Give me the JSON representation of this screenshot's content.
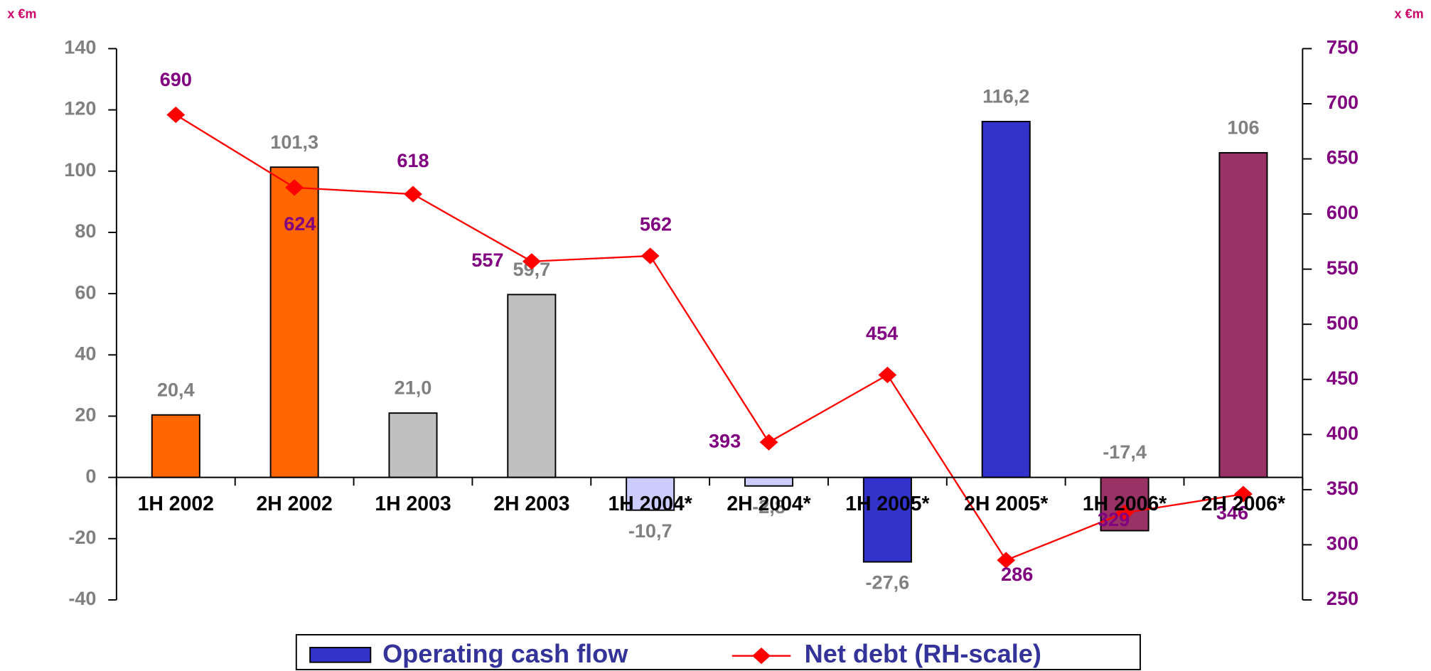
{
  "chart_data": {
    "type": "bar-line",
    "y_unit_label": "x €m",
    "y2_unit_label": "x €m",
    "categories": [
      "1H 2002",
      "2H 2002",
      "1H 2003",
      "2H 2003",
      "1H 2004*",
      "2H 2004*",
      "1H 2005*",
      "2H 2005*",
      "1H 2006*",
      "2H 2006*"
    ],
    "series": [
      {
        "name": "Operating cash flow",
        "type": "bar",
        "color": "#3333cc",
        "colors": [
          "#ff6600",
          "#ff6600",
          "#c0c0c0",
          "#c0c0c0",
          "#ccccff",
          "#ccccff",
          "#3333cc",
          "#3333cc",
          "#993366",
          "#993366"
        ],
        "values": [
          20.4,
          101.3,
          21.0,
          59.7,
          -10.7,
          -2.8,
          -27.6,
          116.2,
          -17.4,
          106
        ],
        "value_labels": [
          "20,4",
          "101,3",
          "21,0",
          "59,7",
          "-10,7",
          "-2,8",
          "-27,6",
          "116,2",
          "-17,4",
          "106"
        ]
      },
      {
        "name": "Net debt (RH-scale)",
        "type": "line",
        "axis": "y2",
        "color": "#ff0000",
        "values": [
          690,
          624,
          618,
          557,
          562,
          393,
          454,
          286,
          329,
          346
        ]
      }
    ],
    "ylim": [
      -40,
      140
    ],
    "yticks": [
      -40,
      -20,
      0,
      20,
      40,
      60,
      80,
      100,
      120,
      140
    ],
    "y2lim": [
      250,
      750
    ],
    "y2ticks": [
      250,
      300,
      350,
      400,
      450,
      500,
      550,
      600,
      650,
      700,
      750
    ],
    "legend": "bottom"
  }
}
